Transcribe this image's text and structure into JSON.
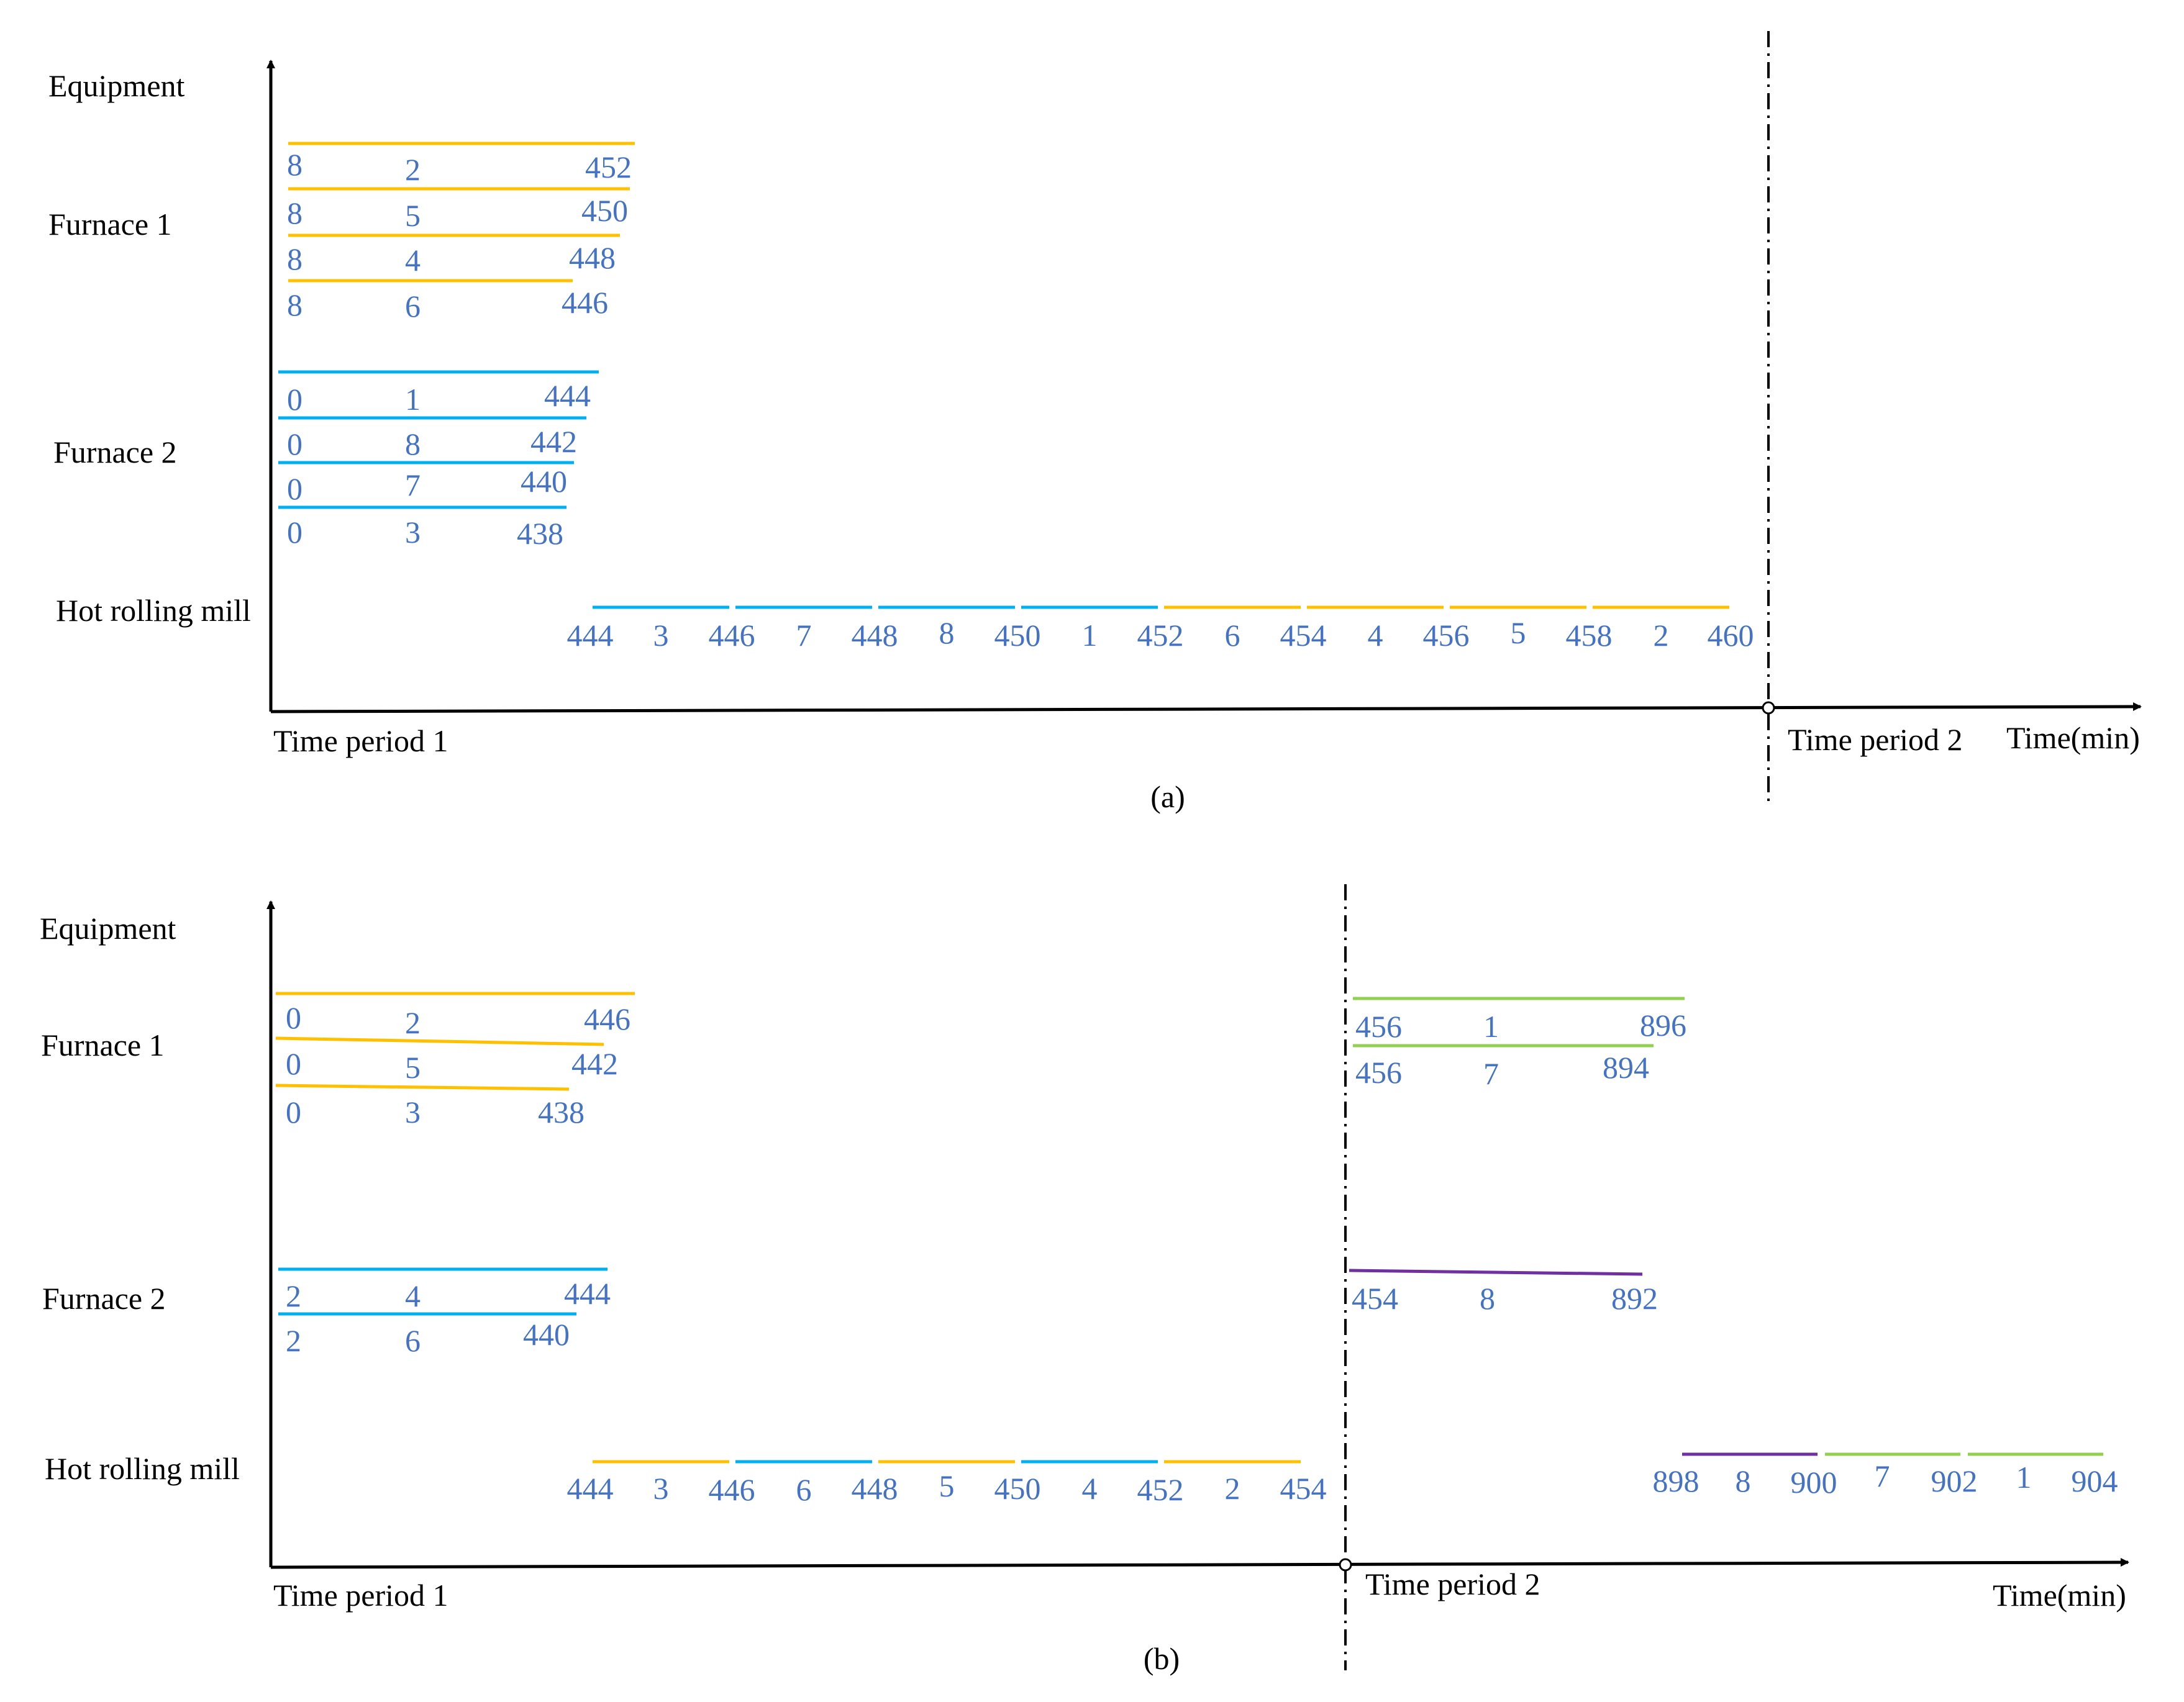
{
  "colors": {
    "axis": "#000000",
    "text": "#000000",
    "numbers": "#4472C4",
    "orange": "#FFC000",
    "blue": "#00B0F0",
    "green": "#92D050",
    "purple": "#7030A0"
  },
  "panels": [
    {
      "caption": "(a)",
      "y_axis_label": "Equipment",
      "x_axis_label": "Time(min)",
      "period1_label": "Time period 1",
      "period2_label": "Time period 2",
      "equipment": [
        "Furnace 1",
        "Furnace 2",
        "Hot rolling mill"
      ],
      "furnace1_jobs": [
        {
          "start": "8",
          "job": "2",
          "end": "452",
          "color": "orange"
        },
        {
          "start": "8",
          "job": "5",
          "end": "450",
          "color": "orange"
        },
        {
          "start": "8",
          "job": "4",
          "end": "448",
          "color": "orange"
        },
        {
          "start": "8",
          "job": "6",
          "end": "446",
          "color": "orange"
        }
      ],
      "furnace2_jobs": [
        {
          "start": "0",
          "job": "1",
          "end": "444",
          "color": "blue"
        },
        {
          "start": "0",
          "job": "8",
          "end": "442",
          "color": "blue"
        },
        {
          "start": "0",
          "job": "7",
          "end": "440",
          "color": "blue"
        },
        {
          "start": "0",
          "job": "3",
          "end": "438",
          "color": "blue"
        }
      ],
      "mill_times_p1": [
        "444",
        "446",
        "448",
        "450",
        "452",
        "454",
        "456",
        "458",
        "460"
      ],
      "mill_jobs_p1": [
        {
          "job": "3",
          "color": "blue"
        },
        {
          "job": "7",
          "color": "blue"
        },
        {
          "job": "8",
          "color": "blue"
        },
        {
          "job": "1",
          "color": "blue"
        },
        {
          "job": "6",
          "color": "orange"
        },
        {
          "job": "4",
          "color": "orange"
        },
        {
          "job": "5",
          "color": "orange"
        },
        {
          "job": "2",
          "color": "orange"
        }
      ]
    },
    {
      "caption": "(b)",
      "y_axis_label": "Equipment",
      "x_axis_label": "Time(min)",
      "period1_label": "Time period 1",
      "period2_label": "Time period 2",
      "equipment": [
        "Furnace 1",
        "Furnace 2",
        "Hot rolling mill"
      ],
      "furnace1_jobs": [
        {
          "start": "0",
          "job": "2",
          "end": "446",
          "color": "orange"
        },
        {
          "start": "0",
          "job": "5",
          "end": "442",
          "color": "orange"
        },
        {
          "start": "0",
          "job": "3",
          "end": "438",
          "color": "orange"
        }
      ],
      "furnace2_jobs": [
        {
          "start": "2",
          "job": "4",
          "end": "444",
          "color": "blue"
        },
        {
          "start": "2",
          "job": "6",
          "end": "440",
          "color": "blue"
        }
      ],
      "furnace1_jobs_p2": [
        {
          "start": "456",
          "job": "1",
          "end": "896",
          "color": "green"
        },
        {
          "start": "456",
          "job": "7",
          "end": "894",
          "color": "green"
        }
      ],
      "furnace2_jobs_p2": [
        {
          "start": "454",
          "job": "8",
          "end": "892",
          "color": "purple"
        }
      ],
      "mill_times_p1": [
        "444",
        "446",
        "448",
        "450",
        "452",
        "454"
      ],
      "mill_jobs_p1": [
        {
          "job": "3",
          "color": "orange"
        },
        {
          "job": "6",
          "color": "blue"
        },
        {
          "job": "5",
          "color": "orange"
        },
        {
          "job": "4",
          "color": "blue"
        },
        {
          "job": "2",
          "color": "orange"
        }
      ],
      "mill_times_p2": [
        "898",
        "900",
        "902",
        "904"
      ],
      "mill_jobs_p2": [
        {
          "job": "8",
          "color": "purple"
        },
        {
          "job": "7",
          "color": "green"
        },
        {
          "job": "1",
          "color": "green"
        }
      ]
    }
  ]
}
